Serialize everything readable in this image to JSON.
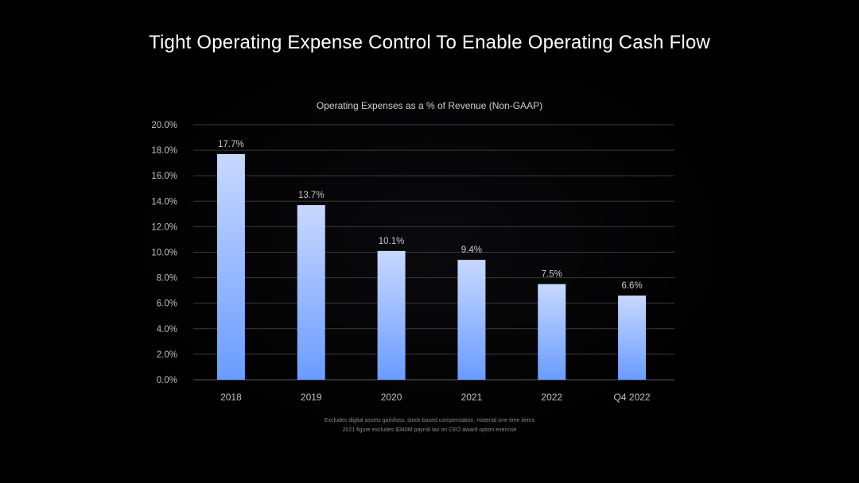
{
  "slide": {
    "title": "Tight Operating Expense Control To Enable Operating Cash Flow",
    "footnotes": [
      "Excludes digital assets gain/loss, stock-based compensation, material one-time items",
      "2021 figure excludes $340M payroll tax on CEO award option exercise"
    ]
  },
  "chart_data": {
    "type": "bar",
    "title": "Operating Expenses as a % of Revenue (Non-GAAP)",
    "categories": [
      "2018",
      "2019",
      "2020",
      "2021",
      "2022",
      "Q4 2022"
    ],
    "values": [
      17.7,
      13.7,
      10.1,
      9.4,
      7.5,
      6.6
    ],
    "data_labels": [
      "17.7%",
      "13.7%",
      "10.1%",
      "9.4%",
      "7.5%",
      "6.6%"
    ],
    "ylim": [
      0,
      20
    ],
    "yticks": [
      0,
      2,
      4,
      6,
      8,
      10,
      12,
      14,
      16,
      18,
      20
    ],
    "ytick_labels": [
      "0.0%",
      "2.0%",
      "4.0%",
      "6.0%",
      "8.0%",
      "10.0%",
      "12.0%",
      "14.0%",
      "16.0%",
      "18.0%",
      "20.0%"
    ],
    "grid": true,
    "legend": "none",
    "colors": {
      "bar_top": "#c8d8ff",
      "bar_bottom": "#6a9cff",
      "grid": "#3a3a3a",
      "axis_text": "#bfbfbf",
      "label_text": "#c8c8c8",
      "title_text": "#cfcfcf"
    }
  }
}
